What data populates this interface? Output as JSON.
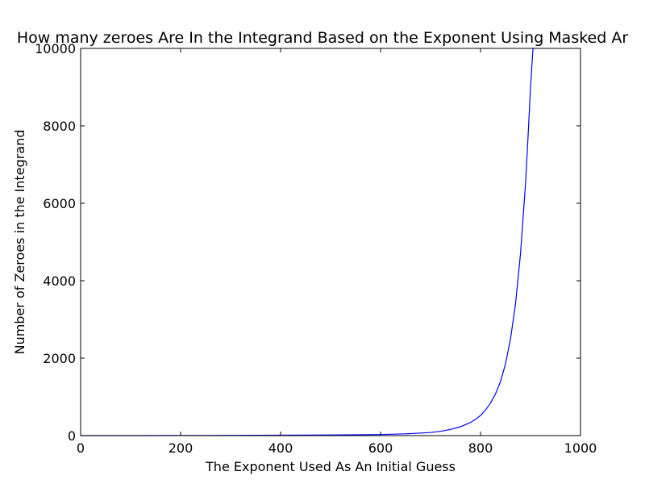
{
  "chart_data": {
    "type": "line",
    "title": "How many zeroes Are In the Integrand Based on the Exponent Using Masked Ar",
    "xlabel": "The Exponent Used As An Initial Guess",
    "ylabel": "Number of Zeroes in the Integrand",
    "xlim": [
      0,
      1000
    ],
    "ylim": [
      0,
      10000
    ],
    "xticks": [
      0,
      200,
      400,
      600,
      800,
      1000
    ],
    "yticks": [
      0,
      2000,
      4000,
      6000,
      8000,
      10000
    ],
    "xtick_labels": [
      "0",
      "200",
      "400",
      "600",
      "800",
      "1000"
    ],
    "ytick_labels": [
      "0",
      "2000",
      "4000",
      "6000",
      "8000",
      "10000"
    ],
    "grid": false,
    "legend": "none",
    "series": [
      {
        "color": "#0000ff",
        "x": [
          0,
          100,
          200,
          300,
          400,
          500,
          550,
          600,
          650,
          700,
          720,
          740,
          760,
          780,
          790,
          800,
          810,
          820,
          830,
          840,
          850,
          860,
          870,
          880,
          890,
          895,
          900,
          905,
          908
        ],
        "y": [
          0,
          1,
          3,
          6,
          10,
          16,
          20,
          27,
          45,
          80,
          110,
          160,
          230,
          340,
          420,
          520,
          660,
          840,
          1080,
          1400,
          1850,
          2500,
          3400,
          4700,
          6500,
          7700,
          9000,
          10000,
          10000
        ]
      }
    ]
  }
}
